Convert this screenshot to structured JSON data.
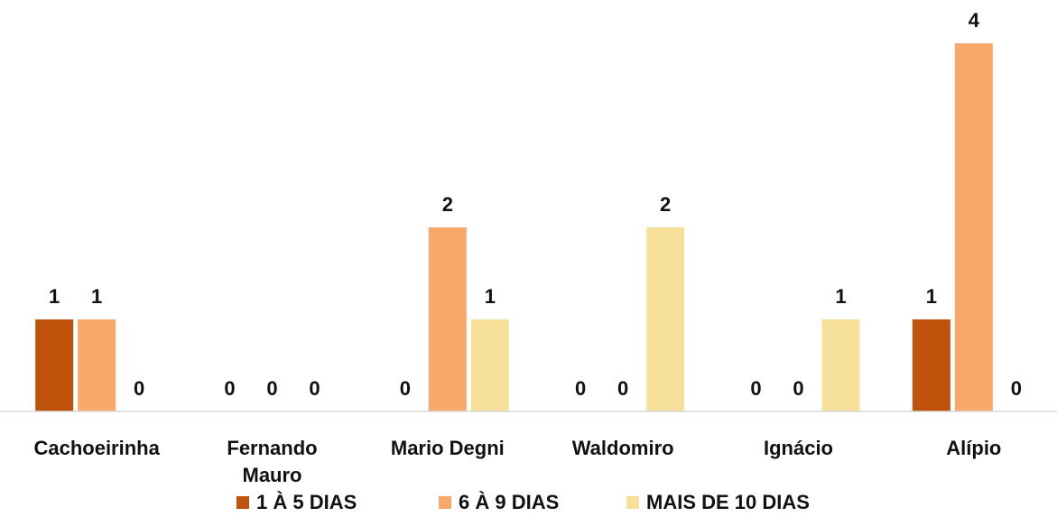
{
  "chart_data": {
    "type": "bar",
    "categories": [
      "Cachoeirinha",
      "Fernando Mauro",
      "Mario Degni",
      "Waldomiro",
      "Ignácio",
      "Alípio"
    ],
    "series": [
      {
        "name": "1 À  5 DIAS",
        "color": "#c0530b",
        "values": [
          1,
          0,
          0,
          0,
          0,
          1
        ]
      },
      {
        "name": "6 À 9 DIAS",
        "color": "#f8a868",
        "values": [
          1,
          0,
          2,
          0,
          0,
          4
        ]
      },
      {
        "name": "MAIS DE 10 DIAS",
        "color": "#f7e09a",
        "values": [
          0,
          0,
          1,
          2,
          1,
          0
        ]
      }
    ],
    "ylim": [
      0,
      4
    ],
    "legend": "bottom"
  }
}
